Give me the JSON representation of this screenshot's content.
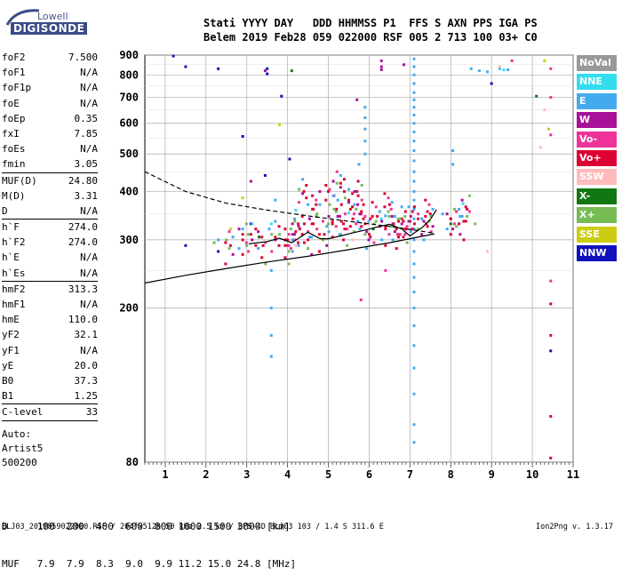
{
  "logo": {
    "line1": "Lowell",
    "line2": "DIGISONDE"
  },
  "header": {
    "line1": "Stati YYYY DAY   DDD HHMMSS P1  FFS S AXN PPS IGA PS",
    "line2": "Belem 2019 Feb28 059 022000 RSF 005 2 713 100 03+ C0"
  },
  "params": [
    {
      "name": "foF2",
      "value": "7.500"
    },
    {
      "name": "foF1",
      "value": "N/A"
    },
    {
      "name": "foF1p",
      "value": "N/A"
    },
    {
      "name": "foE",
      "value": "N/A"
    },
    {
      "name": "foEp",
      "value": "0.35"
    },
    {
      "name": "fxI",
      "value": "7.85"
    },
    {
      "name": "foEs",
      "value": "N/A"
    },
    {
      "name": "fmin",
      "value": "3.05",
      "sep": true
    },
    {
      "name": "MUF(D)",
      "value": "24.80"
    },
    {
      "name": "M(D)",
      "value": "3.31"
    },
    {
      "name": "D",
      "value": "N/A",
      "sep": true
    },
    {
      "name": "h`F",
      "value": "274.0"
    },
    {
      "name": "h`F2",
      "value": "274.0"
    },
    {
      "name": "h`E",
      "value": "N/A"
    },
    {
      "name": "h`Es",
      "value": "N/A",
      "sep": true
    },
    {
      "name": "hmF2",
      "value": "313.3"
    },
    {
      "name": "hmF1",
      "value": "N/A"
    },
    {
      "name": "hmE",
      "value": "110.0"
    },
    {
      "name": "yF2",
      "value": "32.1"
    },
    {
      "name": "yF1",
      "value": "N/A"
    },
    {
      "name": "yE",
      "value": "20.0"
    },
    {
      "name": "B0",
      "value": "37.3"
    },
    {
      "name": "B1",
      "value": "1.25",
      "sep": true
    },
    {
      "name": "C-level",
      "value": "33",
      "sep": true
    }
  ],
  "auto": {
    "line1": "Auto:",
    "line2": "Artist5",
    "line3": "500200"
  },
  "footer": {
    "line1": "D     100  200  400  600  800 1000 1500 3000 [km]",
    "line2": "MUF   7.9  7.9  8.3  9.0  9.9 11.2 15.0 24.8 [MHz]"
  },
  "bottom_line": "BLJ03_2019059022000.RSF / 204fx512h 50 kHz 2.5 km / DPS-4D BLJ03 103 / 1.4 S 311.6 E",
  "version": "Ion2Png v. 1.3.17",
  "legend": [
    {
      "label": "NoVal",
      "color": "#999999"
    },
    {
      "label": "NNE",
      "color": "#33ddee"
    },
    {
      "label": "E",
      "color": "#44aaee"
    },
    {
      "label": "W",
      "color": "#aa1199"
    },
    {
      "label": "Vo-",
      "color": "#ee3399"
    },
    {
      "label": "Vo+",
      "color": "#dd0033"
    },
    {
      "label": "SSW",
      "color": "#ffbbbb"
    },
    {
      "label": "X-",
      "color": "#117711"
    },
    {
      "label": "X+",
      "color": "#77bb55"
    },
    {
      "label": "SSE",
      "color": "#cccc11"
    },
    {
      "label": "NNW",
      "color": "#1111bb"
    }
  ],
  "chart_data": {
    "type": "scatter",
    "title": "",
    "xlabel": "",
    "ylabel": "",
    "xlim": [
      0.5,
      11
    ],
    "ylim": [
      80,
      900
    ],
    "y_scale": "log",
    "grid": true,
    "x_ticks": [
      1,
      2,
      3,
      4,
      5,
      6,
      7,
      8,
      9,
      10,
      11
    ],
    "y_ticks": [
      80,
      200,
      300,
      400,
      500,
      600,
      700,
      800,
      900
    ],
    "y_tick_labels": [
      "80",
      "200",
      "300",
      "400",
      "500",
      "600",
      "700",
      "800",
      "900"
    ],
    "curves": [
      {
        "name": "",
        "style": "solid",
        "points": [
          [
            0.5,
            232
          ],
          [
            1.5,
            243
          ],
          [
            2.5,
            253
          ],
          [
            3.5,
            263
          ],
          [
            4.5,
            272
          ],
          [
            5.5,
            283
          ],
          [
            6.5,
            295
          ],
          [
            7.6,
            311
          ]
        ]
      },
      {
        "name": "",
        "style": "dashed",
        "points": [
          [
            0.5,
            450
          ],
          [
            1.5,
            400
          ],
          [
            2.5,
            373
          ],
          [
            3.5,
            358
          ],
          [
            4.5,
            346
          ],
          [
            5.5,
            335
          ],
          [
            6.5,
            325
          ],
          [
            7.2,
            317
          ],
          [
            7.6,
            312
          ]
        ]
      },
      {
        "name": "",
        "style": "solid",
        "points": [
          [
            3.05,
            293
          ],
          [
            3.5,
            297
          ],
          [
            3.8,
            303
          ],
          [
            4.1,
            295
          ],
          [
            4.5,
            314
          ],
          [
            4.8,
            302
          ],
          [
            5.0,
            302
          ],
          [
            5.3,
            307
          ],
          [
            5.6,
            313
          ],
          [
            5.9,
            318
          ],
          [
            6.2,
            324
          ],
          [
            6.5,
            329
          ],
          [
            6.8,
            320
          ],
          [
            7.0,
            307
          ],
          [
            7.3,
            323
          ],
          [
            7.5,
            339
          ],
          [
            7.65,
            359
          ]
        ]
      }
    ],
    "series": [
      {
        "name": "NNE",
        "color": "#33ddee",
        "points": [
          [
            4.2,
            358
          ],
          [
            5.5,
            352
          ],
          [
            6.3,
            340
          ],
          [
            7.1,
            365
          ],
          [
            3.6,
            330
          ],
          [
            8.3,
            372
          ],
          [
            9.3,
            824
          ]
        ]
      },
      {
        "name": "E",
        "color": "#44aaee",
        "points": [
          [
            7.1,
            880
          ],
          [
            7.1,
            840
          ],
          [
            7.1,
            800
          ],
          [
            7.1,
            760
          ],
          [
            7.1,
            720
          ],
          [
            7.1,
            690
          ],
          [
            7.1,
            660
          ],
          [
            7.1,
            630
          ],
          [
            7.1,
            600
          ],
          [
            7.1,
            570
          ],
          [
            7.1,
            540
          ],
          [
            7.1,
            510
          ],
          [
            7.1,
            480
          ],
          [
            7.1,
            450
          ],
          [
            7.1,
            425
          ],
          [
            7.1,
            400
          ],
          [
            7.1,
            380
          ],
          [
            7.1,
            360
          ],
          [
            7.1,
            340
          ],
          [
            7.1,
            320
          ],
          [
            7.1,
            300
          ],
          [
            7.1,
            280
          ],
          [
            7.1,
            260
          ],
          [
            7.1,
            240
          ],
          [
            7.1,
            220
          ],
          [
            7.1,
            200
          ],
          [
            7.1,
            180
          ],
          [
            7.1,
            160
          ],
          [
            7.1,
            140
          ],
          [
            7.1,
            120
          ],
          [
            7.1,
            100
          ],
          [
            7.1,
            90
          ],
          [
            8.5,
            830
          ],
          [
            8.7,
            820
          ],
          [
            8.9,
            815
          ],
          [
            9.2,
            830
          ],
          [
            9.4,
            825
          ],
          [
            8.05,
            510
          ],
          [
            8.05,
            470
          ],
          [
            5.9,
            660
          ],
          [
            5.9,
            620
          ],
          [
            5.9,
            580
          ],
          [
            5.9,
            540
          ],
          [
            5.9,
            500
          ],
          [
            5.75,
            470
          ],
          [
            3.6,
            250
          ],
          [
            3.6,
            200
          ],
          [
            3.6,
            170
          ],
          [
            3.6,
            150
          ],
          [
            3.55,
            320
          ],
          [
            3.7,
            380
          ],
          [
            4.5,
            370
          ],
          [
            5.3,
            310
          ],
          [
            6.4,
            346
          ],
          [
            7.8,
            350
          ],
          [
            8.2,
            360
          ],
          [
            2.3,
            300
          ],
          [
            2.9,
            320
          ]
        ]
      },
      {
        "name": "W",
        "color": "#aa1199",
        "points": [
          [
            6.3,
            870
          ],
          [
            6.3,
            840
          ],
          [
            6.3,
            825
          ],
          [
            6.85,
            850
          ],
          [
            5.7,
            690
          ],
          [
            3.1,
            425
          ],
          [
            8.05,
            320
          ],
          [
            3.45,
            820
          ]
        ]
      },
      {
        "name": "Vo-",
        "color": "#ee3399",
        "points": [
          [
            10.45,
            830
          ],
          [
            10.45,
            700
          ],
          [
            10.45,
            560
          ],
          [
            10.45,
            235
          ],
          [
            9.5,
            870
          ],
          [
            5.8,
            210
          ],
          [
            6.4,
            250
          ]
        ]
      },
      {
        "name": "Vo+",
        "color": "#dd0033",
        "points": [
          [
            2.6,
            290
          ],
          [
            2.9,
            300
          ],
          [
            3.1,
            310
          ],
          [
            3.4,
            290
          ],
          [
            3.7,
            305
          ],
          [
            4.0,
            300
          ],
          [
            4.3,
            320
          ],
          [
            4.5,
            300
          ],
          [
            4.6,
            330
          ],
          [
            4.9,
            310
          ],
          [
            5.1,
            330
          ],
          [
            5.2,
            360
          ],
          [
            5.4,
            320
          ],
          [
            5.5,
            380
          ],
          [
            5.6,
            340
          ],
          [
            5.8,
            350
          ],
          [
            5.9,
            330
          ],
          [
            6.0,
            310
          ],
          [
            6.2,
            345
          ],
          [
            6.4,
            320
          ],
          [
            6.6,
            330
          ],
          [
            6.7,
            310
          ],
          [
            6.8,
            340
          ],
          [
            6.9,
            320
          ],
          [
            7.0,
            335
          ],
          [
            7.2,
            340
          ],
          [
            7.4,
            330
          ],
          [
            7.5,
            350
          ],
          [
            8.0,
            340
          ],
          [
            8.2,
            330
          ],
          [
            8.4,
            360
          ],
          [
            5.3,
            420
          ],
          [
            5.0,
            400
          ],
          [
            4.4,
            400
          ],
          [
            4.7,
            370
          ],
          [
            5.7,
            400
          ],
          [
            6.5,
            370
          ],
          [
            10.45,
            205
          ],
          [
            10.45,
            170
          ],
          [
            10.45,
            105
          ],
          [
            10.45,
            82
          ],
          [
            4.0,
            290
          ],
          [
            4.2,
            315
          ]
        ]
      },
      {
        "name": "SSW",
        "color": "#ffbbbb",
        "points": [
          [
            8.9,
            280
          ],
          [
            9.2,
            840
          ],
          [
            10.3,
            650
          ],
          [
            10.2,
            520
          ],
          [
            5.6,
            300
          ],
          [
            4.2,
            290
          ]
        ]
      },
      {
        "name": "X-",
        "color": "#117711",
        "points": [
          [
            4.1,
            820
          ],
          [
            10.1,
            705
          ],
          [
            8.0,
            330
          ],
          [
            3.3,
            305
          ],
          [
            6.1,
            320
          ]
        ]
      },
      {
        "name": "X+",
        "color": "#77bb55",
        "points": [
          [
            2.5,
            300
          ],
          [
            3.0,
            290
          ],
          [
            8.4,
            345
          ],
          [
            8.6,
            330
          ],
          [
            5.0,
            330
          ],
          [
            3.8,
            310
          ],
          [
            2.2,
            295
          ]
        ]
      },
      {
        "name": "SSE",
        "color": "#cccc11",
        "points": [
          [
            10.3,
            870
          ],
          [
            10.4,
            580
          ],
          [
            3.8,
            595
          ],
          [
            2.9,
            385
          ],
          [
            2.6,
            320
          ]
        ]
      },
      {
        "name": "NNW",
        "color": "#1111bb",
        "points": [
          [
            1.2,
            895
          ],
          [
            1.5,
            840
          ],
          [
            2.3,
            830
          ],
          [
            3.5,
            830
          ],
          [
            3.5,
            805
          ],
          [
            3.85,
            705
          ],
          [
            4.05,
            485
          ],
          [
            3.45,
            440
          ],
          [
            2.9,
            555
          ],
          [
            1.5,
            290
          ],
          [
            2.3,
            280
          ],
          [
            3.1,
            330
          ],
          [
            9.0,
            760
          ],
          [
            10.45,
            155
          ]
        ]
      }
    ]
  }
}
